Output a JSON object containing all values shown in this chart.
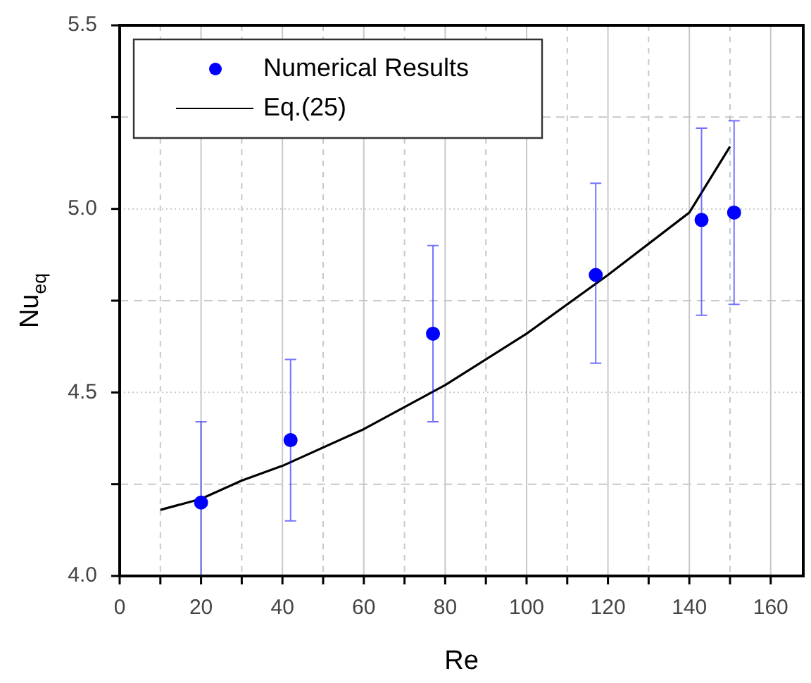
{
  "chart_data": {
    "type": "scatter",
    "xlabel": "Re",
    "ylabel": "Nu$_{eq}$",
    "xlim": [
      0,
      168
    ],
    "xticks": [
      0,
      {
        "value": 10,
        "label": null
      },
      20,
      {
        "value": 30,
        "label": null
      },
      40,
      {
        "value": 50,
        "label": null
      },
      60,
      {
        "value": 70,
        "label": null
      },
      80,
      {
        "value": 90,
        "label": null
      },
      100,
      {
        "value": 110,
        "label": null
      },
      120,
      {
        "value": 130,
        "label": null
      },
      140,
      {
        "value": 150,
        "label": null
      },
      160
    ],
    "ylim": [
      4.0,
      5.5
    ],
    "yticks": [
      {
        "value": 4.0,
        "label": "4.0"
      },
      {
        "value": 4.25,
        "label": null
      },
      4.5,
      {
        "value": 4.75,
        "label": null
      },
      {
        "value": 5.0,
        "label": "5.0"
      },
      {
        "value": 5.25,
        "label": null
      },
      5.5
    ],
    "grid": true,
    "legend": "top left",
    "marker": "circle",
    "series": [
      {
        "name": "Numerical Results",
        "type": "scatter",
        "color": "#0000ff",
        "x": [
          20,
          42,
          77,
          117,
          143,
          151
        ],
        "values": [
          4.2,
          4.37,
          4.66,
          4.82,
          4.97,
          4.99
        ],
        "errors": [
          [
            4.0,
            4.42
          ],
          [
            4.15,
            4.59
          ],
          [
            4.42,
            4.9
          ],
          [
            4.58,
            5.07
          ],
          [
            4.71,
            5.22
          ],
          [
            4.74,
            5.24
          ]
        ]
      },
      {
        "name": "Eq.(25)",
        "type": "line",
        "color": "#000000",
        "marker": "none",
        "x": [
          10,
          20,
          30,
          40,
          60,
          80,
          100,
          120,
          140,
          150
        ],
        "values": [
          4.18,
          4.21,
          4.26,
          4.3,
          4.4,
          4.52,
          4.66,
          4.82,
          4.99,
          5.17
        ]
      }
    ]
  }
}
